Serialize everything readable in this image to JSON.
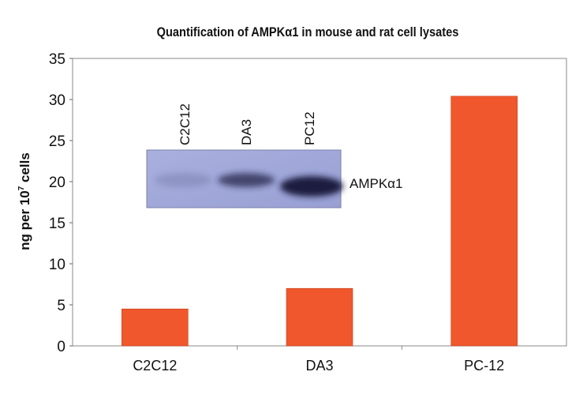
{
  "chart_data": {
    "type": "bar",
    "title": "Quantification of AMPKα1 in mouse and rat cell lysates",
    "xlabel": "",
    "ylabel": "ng per 10",
    "ylabel_superscript": "7",
    "ylabel_suffix": " cells",
    "categories": [
      "C2C12",
      "DA3",
      "PC-12"
    ],
    "values": [
      4.5,
      7.0,
      30.4
    ],
    "ylim": [
      0,
      35
    ],
    "yticks": [
      0,
      5,
      10,
      15,
      20,
      25,
      30,
      35
    ],
    "grid": false,
    "legend": "none",
    "bar_color": "#f0572c",
    "inset": {
      "type": "western-blot-image",
      "lane_labels": [
        "C2C12",
        "DA3",
        "PC12"
      ],
      "band_label": "AMPKα1",
      "band_intensity": [
        0.15,
        0.7,
        1.0
      ],
      "background_color": "#9fa7d8"
    }
  }
}
